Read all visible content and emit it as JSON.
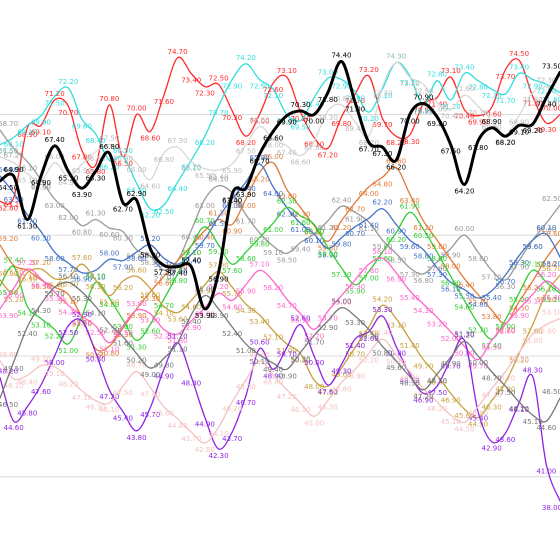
{
  "chart_data": {
    "type": "line",
    "title": "",
    "xlabel": "",
    "ylabel": "",
    "ylim": [
      36,
      77
    ],
    "grid": "horizontal",
    "legend": "none",
    "x": [
      0,
      1,
      2,
      3,
      4,
      5,
      6,
      7,
      8,
      9,
      10,
      11,
      12,
      13,
      14,
      15,
      16,
      17,
      18,
      19,
      20,
      21,
      22,
      23,
      24,
      25,
      26,
      27,
      28,
      29,
      30,
      31,
      32,
      33,
      34,
      35,
      36,
      37,
      38,
      39,
      40,
      41
    ],
    "series": [
      {
        "color": "#000000",
        "bold": true,
        "values": [
          64.5,
          64.9,
          61.3,
          64.9,
          67.4,
          65.3,
          63.9,
          65.3,
          66.8,
          62.7,
          62.9,
          58.9,
          57.5,
          57.4,
          57.4,
          53.9,
          56.9,
          63.4,
          63.9,
          66.7,
          68.6,
          69.9,
          70.3,
          70.0,
          71.8,
          74.4,
          71.0,
          67.7,
          67.3,
          66.2,
          70.0,
          70.9,
          69.8,
          67.5,
          64.2,
          67.8,
          68.9,
          68.2,
          69.1,
          69.2,
          71.4,
          73.5
        ]
      },
      {
        "color": "#ff2a2a",
        "values": [
          62.8,
          63.1,
          68.9,
          69.1,
          71.2,
          70.7,
          67.0,
          65.8,
          70.8,
          66.5,
          70.0,
          68.6,
          71.6,
          74.7,
          73.4,
          72.3,
          72.5,
          70.3,
          68.2,
          70.0,
          72.6,
          73.1,
          70.2,
          68.1,
          67.2,
          69.8,
          71.7,
          73.2,
          69.7,
          68.2,
          68.3,
          70.9,
          71.4,
          73.1,
          70.4,
          69.9,
          70.6,
          73.7,
          74.5,
          71.5,
          69.3,
          70.0
        ]
      },
      {
        "color": "#33dddd",
        "values": [
          67.5,
          68.1,
          69.1,
          69.9,
          71.5,
          72.2,
          69.6,
          68.4,
          66.2,
          66.5,
          64.3,
          62.2,
          62.5,
          64.4,
          66.2,
          68.2,
          70.7,
          72.9,
          74.2,
          72.9,
          72.1,
          70.0,
          69.5,
          71.4,
          73.0,
          72.9,
          71.9,
          70.2,
          72.1,
          74.3,
          73.2,
          70.8,
          72.8,
          71.2,
          73.4,
          72.8,
          72.1,
          71.7,
          73.4,
          72.9,
          72.5,
          71.8
        ]
      },
      {
        "color": "#d8d8d8",
        "values": [
          66.5,
          66.0,
          65.1,
          64.5,
          66.0,
          64.9,
          65.9,
          66.9,
          67.5,
          66.9,
          66.0,
          64.6,
          66.8,
          67.3,
          66.1,
          65.5,
          65.4,
          65.9,
          67.5,
          69.0,
          68.0,
          67.4,
          66.6,
          67.8,
          70.3,
          70.8,
          69.4,
          68.2,
          72.3,
          74.3,
          73.1,
          72.5,
          71.0,
          70.4,
          71.6,
          70.7,
          69.5,
          68.3,
          69.9,
          71.8,
          72.3,
          71.5
        ]
      },
      {
        "color": "#999999",
        "values": [
          68.7,
          67.2,
          66.1,
          64.6,
          63.0,
          62.0,
          60.8,
          61.3,
          60.6,
          60.3,
          58.8,
          58.3,
          57.1,
          57.9,
          60.4,
          63.0,
          64.1,
          63.5,
          61.7,
          60.2,
          59.1,
          58.5,
          59.4,
          60.1,
          61.2,
          62.4,
          61.9,
          61.1,
          59.6,
          58.5,
          57.3,
          56.8,
          57.8,
          58.9,
          60.0,
          58.6,
          57.1,
          56.3,
          57.9,
          59.6,
          61.0,
          62.5
        ]
      },
      {
        "color": "#e07b39",
        "values": [
          59.2,
          57.5,
          57.1,
          56.3,
          55.7,
          55.1,
          53.2,
          50.6,
          50.8,
          52.3,
          53.9,
          55.3,
          56.6,
          57.9,
          59.1,
          60.4,
          61.3,
          60.9,
          63.0,
          65.2,
          66.0,
          63.8,
          62.3,
          60.8,
          59.5,
          61.2,
          62.7,
          64.0,
          64.8,
          65.6,
          63.4,
          61.2,
          59.6,
          58.0,
          56.4,
          55.1,
          53.8,
          52.7,
          54.5,
          56.2,
          58.1,
          59.6
        ]
      },
      {
        "color": "#4472c4",
        "values": [
          64.9,
          63.5,
          61.7,
          60.3,
          58.6,
          57.7,
          56.9,
          57.1,
          58.0,
          57.9,
          58.6,
          59.2,
          58.1,
          57.6,
          58.4,
          59.7,
          61.5,
          63.0,
          64.4,
          65.9,
          64.0,
          62.3,
          61.0,
          60.1,
          58.9,
          59.8,
          60.7,
          61.4,
          62.2,
          60.9,
          59.6,
          58.8,
          57.3,
          56.1,
          55.5,
          54.8,
          55.4,
          56.7,
          58.3,
          59.6,
          60.1,
          58.2
        ]
      },
      {
        "color": "#33cc33",
        "values": [
          55.8,
          57.4,
          54.1,
          53.1,
          52.2,
          51.0,
          53.3,
          56.1,
          54.8,
          53.0,
          51.3,
          52.6,
          54.7,
          56.8,
          59.1,
          60.7,
          59.2,
          57.6,
          58.6,
          59.8,
          61.0,
          62.3,
          61.6,
          60.9,
          59.0,
          57.3,
          55.9,
          57.0,
          58.6,
          60.2,
          61.9,
          60.5,
          58.6,
          56.6,
          54.6,
          52.7,
          51.4,
          53.0,
          55.2,
          57.1,
          56.1,
          55.2
        ]
      },
      {
        "color": "#c8a040",
        "values": [
          56.3,
          55.2,
          56.9,
          57.2,
          56.4,
          56.5,
          57.6,
          56.3,
          55.0,
          56.2,
          56.6,
          55.6,
          54.1,
          53.6,
          54.6,
          55.9,
          57.0,
          55.7,
          54.3,
          53.4,
          52.1,
          51.0,
          50.2,
          48.0,
          47.5,
          49.0,
          50.7,
          52.4,
          54.2,
          53.1,
          51.4,
          49.7,
          48.4,
          46.9,
          45.6,
          44.9,
          46.3,
          47.8,
          50.2,
          52.6,
          55.2,
          56.7
        ]
      },
      {
        "color": "#ff66cc",
        "values": [
          53.9,
          55.6,
          57.2,
          56.4,
          55.3,
          54.2,
          53.3,
          52.5,
          51.1,
          52.5,
          53.8,
          53.5,
          52.2,
          51.8,
          52.9,
          54.0,
          55.2,
          54.6,
          55.9,
          57.1,
          56.2,
          54.7,
          53.5,
          52.2,
          53.7,
          55.0,
          56.3,
          57.6,
          58.1,
          56.9,
          55.4,
          54.3,
          53.2,
          52.0,
          50.8,
          49.7,
          51.3,
          52.6,
          53.9,
          55.1,
          56.2,
          55.4
        ]
      },
      {
        "color": "#8e24e3",
        "values": [
          48.2,
          44.6,
          45.8,
          47.6,
          50.0,
          52.5,
          52.9,
          50.3,
          47.2,
          45.4,
          43.8,
          45.7,
          48.9,
          51.1,
          48.3,
          44.9,
          42.3,
          43.7,
          46.7,
          50.6,
          48.9,
          50.7,
          52.6,
          50.0,
          47.6,
          49.3,
          51.4,
          52.0,
          53.3,
          50.8,
          48.5,
          46.9,
          47.5,
          49.7,
          51.3,
          45.4,
          42.9,
          43.6,
          46.1,
          48.3,
          41.0,
          38.0
        ]
      },
      {
        "color": "#f4c2c2",
        "values": [
          49.6,
          48.1,
          48.4,
          49.2,
          49.1,
          48.2,
          47.1,
          46.3,
          46.1,
          47.5,
          48.7,
          47.4,
          45.8,
          44.8,
          43.7,
          42.8,
          44.1,
          46.2,
          48.0,
          49.6,
          48.4,
          47.2,
          46.1,
          45.0,
          46.3,
          47.8,
          48.9,
          50.2,
          51.4,
          50.1,
          48.7,
          47.3,
          46.2,
          45.1,
          44.5,
          45.8,
          47.3,
          48.7,
          50.3,
          51.8,
          52.6,
          53.1
        ]
      },
      {
        "color": "#777777",
        "values": [
          46.5,
          49.5,
          52.4,
          54.3,
          55.7,
          56.1,
          55.3,
          54.1,
          52.7,
          51.6,
          50.2,
          49.0,
          49.8,
          51.1,
          53.4,
          55.0,
          53.9,
          52.4,
          51.0,
          50.1,
          49.4,
          48.9,
          50.3,
          51.7,
          52.9,
          54.0,
          53.3,
          52.2,
          50.8,
          49.6,
          48.3,
          47.2,
          48.5,
          49.9,
          51.2,
          50.0,
          48.7,
          47.5,
          46.2,
          45.1,
          44.6,
          46.5
        ]
      }
    ]
  }
}
